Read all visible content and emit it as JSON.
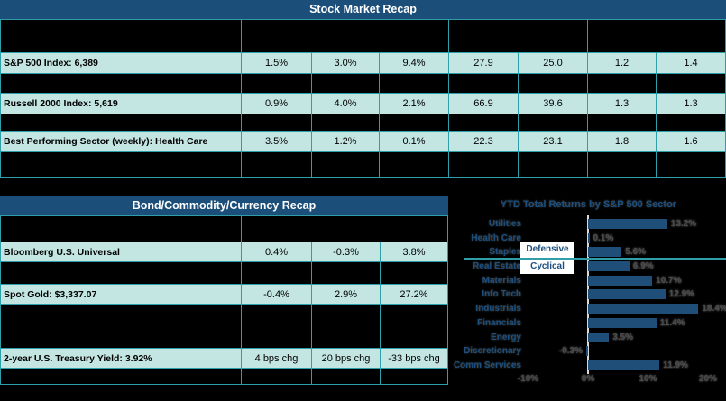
{
  "tables": {
    "stock": {
      "title": "Stock Market Recap",
      "rows": [
        {
          "label": "S&P 500 Index: 6,389",
          "values": [
            "1.5%",
            "3.0%",
            "9.4%",
            "27.9",
            "25.0",
            "1.2",
            "1.4"
          ]
        },
        {
          "label": "Russell 2000 Index: 5,619",
          "values": [
            "0.9%",
            "4.0%",
            "2.1%",
            "66.9",
            "39.6",
            "1.3",
            "1.3"
          ]
        },
        {
          "label": "Best Performing Sector (weekly): Health Care",
          "values": [
            "3.5%",
            "1.2%",
            "0.1%",
            "22.3",
            "23.1",
            "1.8",
            "1.6"
          ]
        }
      ]
    },
    "bond": {
      "title": "Bond/Commodity/Currency Recap",
      "rows": [
        {
          "label": "Bloomberg U.S. Universal",
          "values": [
            "0.4%",
            "-0.3%",
            "3.8%"
          ]
        },
        {
          "label": "Spot Gold: $3,337.07",
          "values": [
            "-0.4%",
            "2.9%",
            "27.2%"
          ]
        },
        {
          "label": "2-year U.S. Treasury Yield: 3.92%",
          "values": [
            "4 bps chg",
            "20 bps chg",
            "-33 bps chg"
          ]
        }
      ]
    }
  },
  "chart_data": {
    "type": "bar",
    "orientation": "horizontal",
    "title": "YTD Total Returns by S&P 500 Sector",
    "categories": [
      "Utilities",
      "Health Care",
      "Staples",
      "Real Estate",
      "Materials",
      "Info Tech",
      "Industrials",
      "Financials",
      "Energy",
      "Discretionary",
      "Comm Services"
    ],
    "values": [
      13.2,
      0.1,
      5.6,
      6.9,
      10.7,
      12.9,
      18.4,
      11.4,
      3.5,
      -0.3,
      11.9
    ],
    "value_labels": [
      "13.2%",
      "0.1%",
      "5.6%",
      "6.9%",
      "10.7%",
      "12.9%",
      "18.4%",
      "11.4%",
      "3.5%",
      "-0.3%",
      "11.9%"
    ],
    "x_ticks": [
      "-10%",
      "0%",
      "10%",
      "20%"
    ],
    "x_tick_values": [
      -10,
      0,
      10,
      20
    ],
    "xlim": [
      -12,
      23
    ],
    "annotations": {
      "defensive": "Defensive",
      "cyclical": "Cyclical"
    },
    "group_divider_after_index": 2,
    "legend": "none",
    "grid": "off",
    "bar_color": "#1F4E79",
    "divider_color": "#2E9FA8",
    "axis_line_color": "#D9D9D9"
  },
  "colors": {
    "header_bar": "#1B4E79",
    "cell_fill": "#C4E6E3",
    "grid_line": "#2E9FA8",
    "background": "#000000"
  }
}
